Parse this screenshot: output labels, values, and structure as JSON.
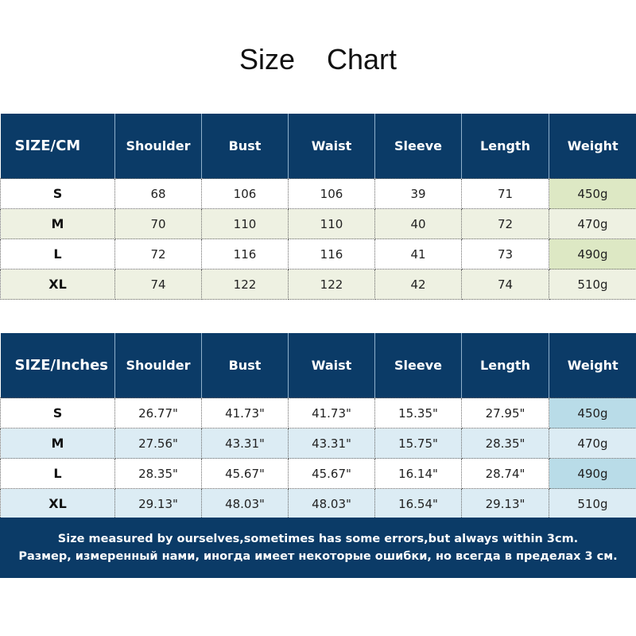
{
  "title": "Size Chart",
  "colors": {
    "header": "#0b3b67",
    "cm_alt_row": "#eef1e2",
    "cm_weight": "#dde8c4",
    "in_alt_row": "#dcecf4",
    "in_weight": "#b9dce8"
  },
  "cm_table": {
    "headers": [
      "SIZE/CM",
      "Shoulder",
      "Bust",
      "Waist",
      "Sleeve",
      "Length",
      "Weight"
    ],
    "rows": [
      [
        "S",
        "68",
        "106",
        "106",
        "39",
        "71",
        "450g"
      ],
      [
        "M",
        "70",
        "110",
        "110",
        "40",
        "72",
        "470g"
      ],
      [
        "L",
        "72",
        "116",
        "116",
        "41",
        "73",
        "490g"
      ],
      [
        "XL",
        "74",
        "122",
        "122",
        "42",
        "74",
        "510g"
      ]
    ]
  },
  "inch_table": {
    "headers": [
      "SIZE/Inches",
      "Shoulder",
      "Bust",
      "Waist",
      "Sleeve",
      "Length",
      "Weight"
    ],
    "rows": [
      [
        "S",
        "26.77\"",
        "41.73\"",
        "41.73\"",
        "15.35\"",
        "27.95\"",
        "450g"
      ],
      [
        "M",
        "27.56\"",
        "43.31\"",
        "43.31\"",
        "15.75\"",
        "28.35\"",
        "470g"
      ],
      [
        "L",
        "28.35\"",
        "45.67\"",
        "45.67\"",
        "16.14\"",
        "28.74\"",
        "490g"
      ],
      [
        "XL",
        "29.13\"",
        "48.03\"",
        "48.03\"",
        "16.54\"",
        "29.13\"",
        "510g"
      ]
    ]
  },
  "footer": {
    "line1": "Size measured by ourselves,sometimes has some errors,but always within 3cm.",
    "line2": "Размер, измеренный нами, иногда имеет некоторые ошибки, но всегда в пределах 3 см."
  }
}
